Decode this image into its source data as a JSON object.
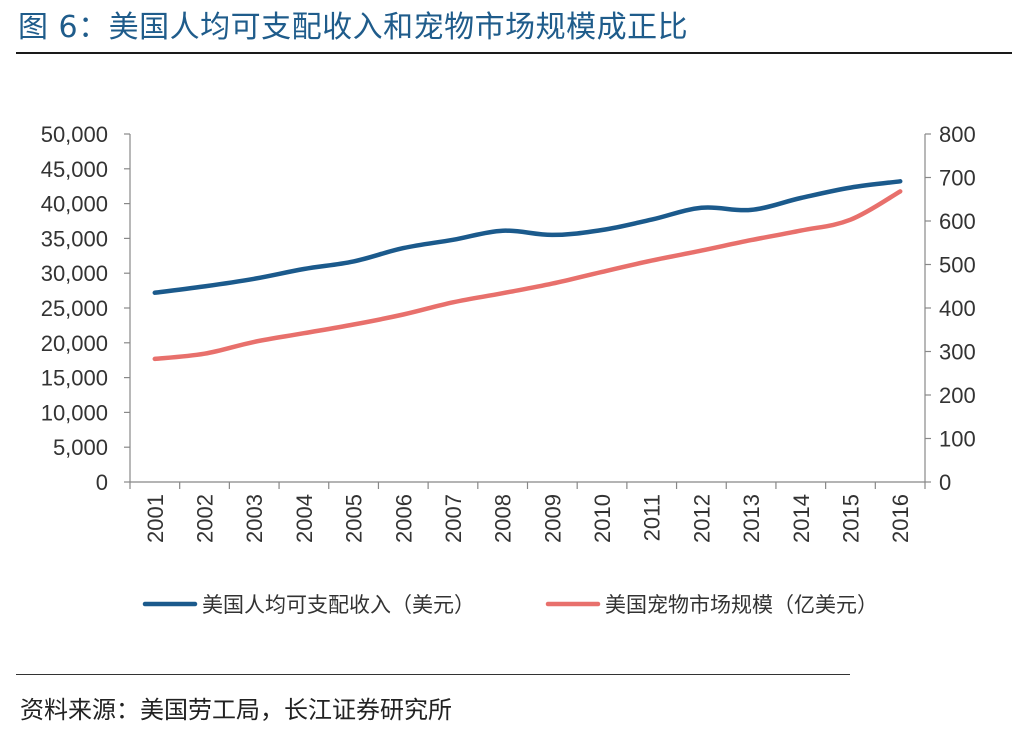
{
  "title": "图 6：美国人均可支配收入和宠物市场规模成正比",
  "source": "资料来源：美国劳工局，长江证券研究所",
  "chart_data": {
    "type": "line",
    "title": "图 6：美国人均可支配收入和宠物市场规模成正比",
    "categories": [
      "2001",
      "2002",
      "2003",
      "2004",
      "2005",
      "2006",
      "2007",
      "2008",
      "2009",
      "2010",
      "2011",
      "2012",
      "2013",
      "2014",
      "2015",
      "2016"
    ],
    "series": [
      {
        "name": "美国人均可支配收入（美元）",
        "axis": "left",
        "color": "#1b5a8c",
        "values": [
          27200,
          28100,
          29200,
          30600,
          31700,
          33600,
          34800,
          36100,
          35500,
          36200,
          37700,
          39400,
          39100,
          40800,
          42300,
          43200
        ]
      },
      {
        "name": "美国宠物市场规模（亿美元）",
        "axis": "right",
        "color": "#e8706c",
        "values": [
          283,
          295,
          322,
          342,
          362,
          385,
          413,
          434,
          456,
          483,
          509,
          532,
          556,
          578,
          603,
          668
        ]
      }
    ],
    "y_left": {
      "min": 0,
      "max": 50000,
      "ticks": [
        "0",
        "5,000",
        "10,000",
        "15,000",
        "20,000",
        "25,000",
        "30,000",
        "35,000",
        "40,000",
        "45,000",
        "50,000"
      ]
    },
    "y_right": {
      "min": 0,
      "max": 800,
      "ticks": [
        "0",
        "100",
        "200",
        "300",
        "400",
        "500",
        "600",
        "700",
        "800"
      ]
    },
    "grid": false,
    "legend_position": "bottom"
  }
}
